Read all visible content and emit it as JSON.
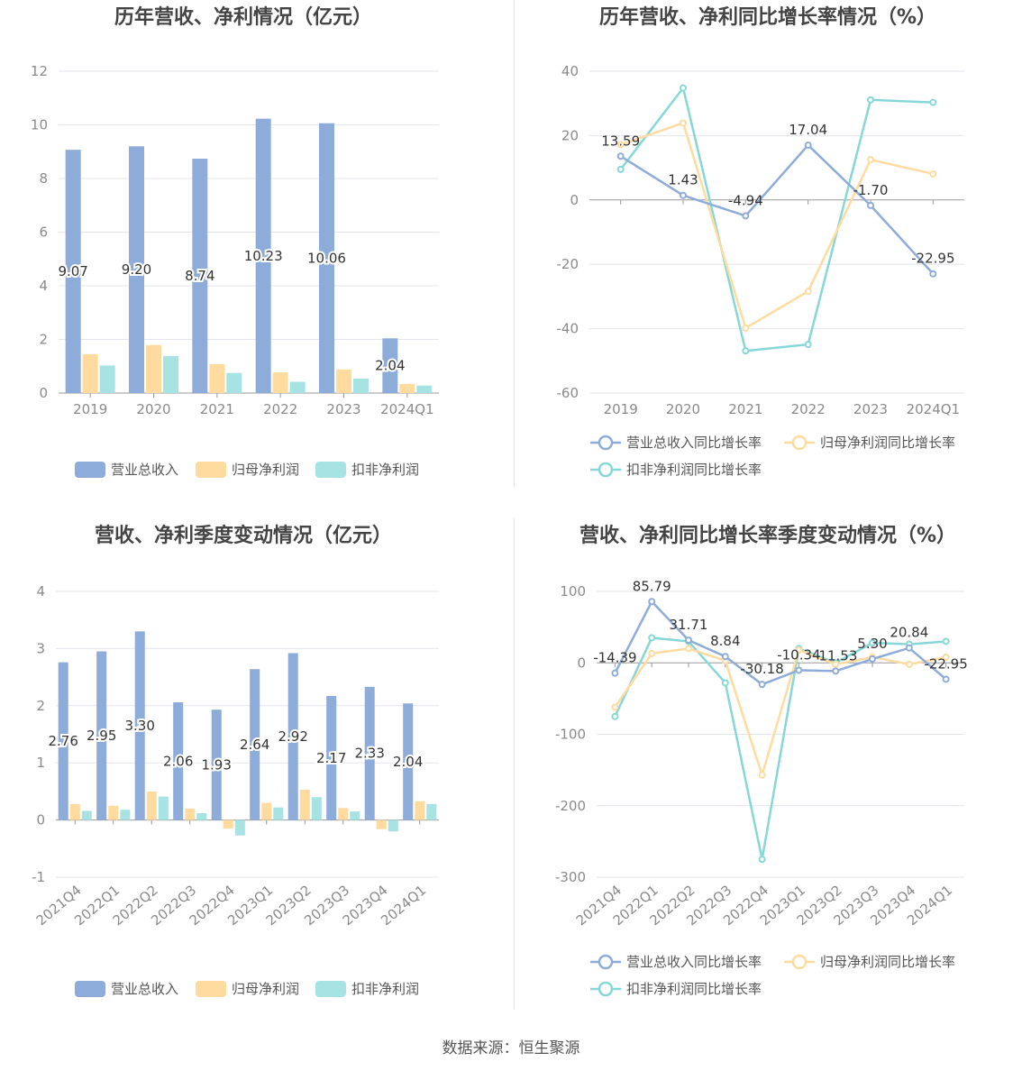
{
  "source_label": "数据来源：恒生聚源",
  "colors": {
    "revenue": "#8eacd9",
    "net_profit": "#ffdb9f",
    "deducted_profit": "#7fd4d6",
    "revenue_line": "#8eacd9",
    "net_profit_line": "#ffdb9f",
    "deducted_profit_line": "#86d7d8"
  },
  "chart_data": [
    {
      "id": "annual_values",
      "type": "bar",
      "title": "历年营收、净利情况（亿元）",
      "categories": [
        "2019",
        "2020",
        "2021",
        "2022",
        "2023",
        "2024Q1"
      ],
      "ylim": [
        0,
        12
      ],
      "yticks": [
        0,
        2,
        4,
        6,
        8,
        10,
        12
      ],
      "grid": true,
      "legend_position": "bottom",
      "label_series": 0,
      "series": [
        {
          "name": "营业总收入",
          "values": [
            9.07,
            9.2,
            8.74,
            10.23,
            10.06,
            2.04
          ],
          "color": "#8eacd9"
        },
        {
          "name": "归母净利润",
          "values": [
            1.45,
            1.79,
            1.08,
            0.77,
            0.88,
            0.34
          ],
          "color": "#ffdb9f"
        },
        {
          "name": "扣非净利润",
          "values": [
            1.03,
            1.38,
            0.75,
            0.42,
            0.54,
            0.28
          ],
          "color": "#a8e3e4"
        }
      ]
    },
    {
      "id": "annual_growth",
      "type": "line",
      "title": "历年营收、净利同比增长率情况（%）",
      "categories": [
        "2019",
        "2020",
        "2021",
        "2022",
        "2023",
        "2024Q1"
      ],
      "ylim": [
        -60,
        40
      ],
      "yticks": [
        -60,
        -40,
        -20,
        0,
        20,
        40
      ],
      "grid": true,
      "legend_position": "bottom",
      "label_series": 0,
      "series": [
        {
          "name": "营业总收入同比增长率",
          "values": [
            13.59,
            1.43,
            -4.94,
            17.04,
            -1.7,
            -22.95
          ],
          "color": "#8eacd9"
        },
        {
          "name": "归母净利润同比增长率",
          "values": [
            17.2,
            23.9,
            -39.8,
            -28.4,
            12.5,
            8.1
          ],
          "color": "#ffdb9f"
        },
        {
          "name": "扣非净利润同比增长率",
          "values": [
            9.5,
            34.8,
            -46.9,
            -44.9,
            31.1,
            30.3
          ],
          "color": "#86d7d8"
        }
      ]
    },
    {
      "id": "quarterly_values",
      "type": "bar",
      "title": "营收、净利季度变动情况（亿元）",
      "categories": [
        "2021Q4",
        "2022Q1",
        "2022Q2",
        "2022Q3",
        "2022Q4",
        "2023Q1",
        "2023Q2",
        "2023Q3",
        "2023Q4",
        "2024Q1"
      ],
      "ylim": [
        -1,
        4
      ],
      "yticks": [
        -1,
        0,
        1,
        2,
        3,
        4
      ],
      "grid": true,
      "legend_position": "bottom",
      "label_series": 0,
      "series": [
        {
          "name": "营业总收入",
          "values": [
            2.76,
            2.95,
            3.3,
            2.06,
            1.93,
            2.64,
            2.92,
            2.17,
            2.33,
            2.04
          ],
          "color": "#8eacd9"
        },
        {
          "name": "归母净利润",
          "values": [
            0.28,
            0.25,
            0.5,
            0.2,
            -0.15,
            0.3,
            0.53,
            0.21,
            -0.16,
            0.33
          ],
          "color": "#ffdb9f"
        },
        {
          "name": "扣非净利润",
          "values": [
            0.16,
            0.18,
            0.41,
            0.12,
            -0.27,
            0.22,
            0.4,
            0.15,
            -0.2,
            0.28
          ],
          "color": "#a8e3e4"
        }
      ]
    },
    {
      "id": "quarterly_growth",
      "type": "line",
      "title": "营收、净利同比增长率季度变动情况（%）",
      "categories": [
        "2021Q4",
        "2022Q1",
        "2022Q2",
        "2022Q3",
        "2022Q4",
        "2023Q1",
        "2023Q2",
        "2023Q3",
        "2023Q4",
        "2024Q1"
      ],
      "ylim": [
        -300,
        100
      ],
      "yticks": [
        -300,
        -200,
        -100,
        0,
        100
      ],
      "grid": true,
      "legend_position": "bottom",
      "label_series": 0,
      "series": [
        {
          "name": "营业总收入同比增长率",
          "values": [
            -14.39,
            85.79,
            31.71,
            8.84,
            -30.18,
            -10.34,
            -11.53,
            5.3,
            20.84,
            -22.95
          ],
          "color": "#8eacd9"
        },
        {
          "name": "归母净利润同比增长率",
          "values": [
            -62,
            13,
            20,
            3,
            -157,
            18,
            -2,
            8,
            -2,
            8
          ],
          "color": "#ffdb9f"
        },
        {
          "name": "扣非净利润同比增长率",
          "values": [
            -75,
            35,
            30,
            -28,
            -275,
            20,
            0,
            28,
            26,
            30
          ],
          "color": "#86d7d8"
        }
      ]
    }
  ]
}
